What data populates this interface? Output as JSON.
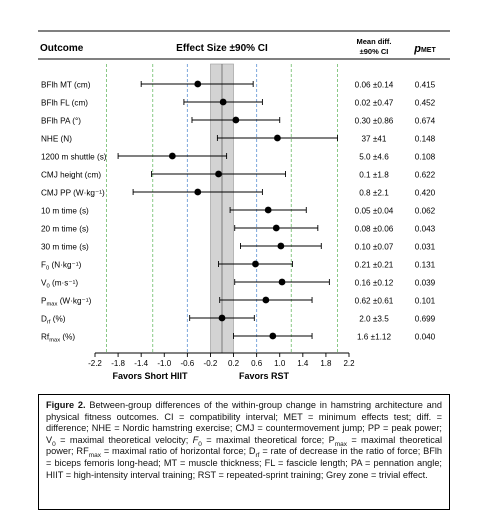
{
  "header": {
    "outcome": "Outcome",
    "effect_size": "Effect Size ±90% CI",
    "mean_diff_line1": "Mean diff.",
    "mean_diff_line2": "±90% CI",
    "pmet_main": "p",
    "pmet_sub": "MET"
  },
  "chart_data": {
    "type": "forest",
    "x_ticks": [
      "-2.2",
      "-1.8",
      "-1.4",
      "-1.0",
      "-0.6",
      "-0.2",
      "0.2",
      "0.6",
      "1.0",
      "1.4",
      "1.8",
      "2.2"
    ],
    "xlim": [
      -2.2,
      2.2
    ],
    "trivial_zone": [
      -0.2,
      0.2
    ],
    "blue_dashed_lines": [
      -0.6,
      0.6
    ],
    "green_dashed_lines": [
      -1.2,
      1.2,
      -2.0,
      2.0
    ],
    "center_line": 0,
    "left_favour_label": "Favors Short HIIT",
    "right_favour_label": "Favors RST",
    "grid": false,
    "rows": [
      {
        "label": "BFlh MT (cm)",
        "label_main": "BFlh MT (cm)",
        "label_sub": "",
        "label_tail": "",
        "es": -0.42,
        "lo": -1.4,
        "hi": 0.54,
        "mean_diff": "0.06 ±0.14",
        "pmet": "0.415"
      },
      {
        "label": "BFlh FL (cm)",
        "label_main": "BFlh FL (cm)",
        "label_sub": "",
        "label_tail": "",
        "es": 0.02,
        "lo": -0.66,
        "hi": 0.7,
        "mean_diff": "0.02 ±0.47",
        "pmet": "0.452"
      },
      {
        "label": "BFlh PA (°)",
        "label_main": "BFlh PA (°)",
        "label_sub": "",
        "label_tail": "",
        "es": 0.24,
        "lo": -0.52,
        "hi": 1.0,
        "mean_diff": "0.30 ±0.86",
        "pmet": "0.674"
      },
      {
        "label": "NHE (N)",
        "label_main": "NHE (N)",
        "label_sub": "",
        "label_tail": "",
        "es": 0.96,
        "lo": -0.08,
        "hi": 2.0,
        "mean_diff": "37 ±41",
        "pmet": "0.148"
      },
      {
        "label": "1200 m shuttle (s)",
        "label_main": "1200 m shuttle (s)",
        "label_sub": "",
        "label_tail": "",
        "es": -0.86,
        "lo": -1.8,
        "hi": 0.08,
        "mean_diff": "5.0 ±4.6",
        "pmet": "0.108"
      },
      {
        "label": "CMJ height (cm)",
        "label_main": "CMJ height (cm)",
        "label_sub": "",
        "label_tail": "",
        "es": -0.06,
        "lo": -1.22,
        "hi": 1.1,
        "mean_diff": "0.1 ±1.8",
        "pmet": "0.622"
      },
      {
        "label": "CMJ PP (W·kg⁻¹)",
        "label_main": "CMJ PP (W·kg⁻¹)",
        "label_sub": "",
        "label_tail": "",
        "es": -0.42,
        "lo": -1.54,
        "hi": 0.7,
        "mean_diff": "0.8 ±2.1",
        "pmet": "0.420"
      },
      {
        "label": "10 m time (s)",
        "label_main": "10 m time (s)",
        "label_sub": "",
        "label_tail": "",
        "es": 0.8,
        "lo": 0.14,
        "hi": 1.46,
        "mean_diff": "0.05 ±0.04",
        "pmet": "0.062"
      },
      {
        "label": "20 m time (s)",
        "label_main": "20 m time (s)",
        "label_sub": "",
        "label_tail": "",
        "es": 0.94,
        "lo": 0.22,
        "hi": 1.66,
        "mean_diff": "0.08 ±0.06",
        "pmet": "0.043"
      },
      {
        "label": "30 m time (s)",
        "label_main": "30 m time (s)",
        "label_sub": "",
        "label_tail": "",
        "es": 1.02,
        "lo": 0.32,
        "hi": 1.72,
        "mean_diff": "0.10 ±0.07",
        "pmet": "0.031"
      },
      {
        "label": "F0 (N·kg⁻¹)",
        "label_main": "F",
        "label_sub": "0",
        "label_tail": " (N·kg⁻¹)",
        "es": 0.58,
        "lo": -0.06,
        "hi": 1.22,
        "mean_diff": "0.21 ±0.21",
        "pmet": "0.131"
      },
      {
        "label": "V0 (m·s⁻¹)",
        "label_main": "V",
        "label_sub": "0",
        "label_tail": " (m·s⁻¹)",
        "es": 1.04,
        "lo": 0.22,
        "hi": 1.86,
        "mean_diff": "0.16 ±0.12",
        "pmet": "0.039"
      },
      {
        "label": "Pmax (W·kg⁻¹)",
        "label_main": "P",
        "label_sub": "max",
        "label_tail": " (W·kg⁻¹)",
        "es": 0.76,
        "lo": -0.04,
        "hi": 1.56,
        "mean_diff": "0.62 ±0.61",
        "pmet": "0.101"
      },
      {
        "label": "Drf (%)",
        "label_main": "D",
        "label_sub": "rf",
        "label_tail": " (%)",
        "es": 0.0,
        "lo": -0.56,
        "hi": 0.56,
        "mean_diff": "2.0 ±3.5",
        "pmet": "0.699"
      },
      {
        "label": "Rfmax (%)",
        "label_main": "Rf",
        "label_sub": "max",
        "label_tail": " (%)",
        "es": 0.88,
        "lo": 0.2,
        "hi": 1.56,
        "mean_diff": "1.6 ±1.12",
        "pmet": "0.040"
      }
    ]
  },
  "caption": {
    "figure_label": "Figure 2.",
    "p1": " Between-group differences of the within-group change in hamstring architecture and physical fitness outcomes. CI = compatibility interval; MET = minimum effects test; diff. = difference; NHE = Nordic hamstring exercise; CMJ = countermovement jump; PP = peak power; V",
    "p1_sub": "0",
    "p2": " = maximal theoretical velocity; ",
    "p2_ital": "F",
    "p2_sub": "0",
    "p3": " = maximal theoretical force; P",
    "p3_sub": "max",
    "p4": " = maximal theoretical power; RF",
    "p4_sub": "max",
    "p5": " = maximal ratio of horizontal force; D",
    "p5_sub": "rf",
    "p6": " = rate of decrease in the ratio of force; BFlh = biceps femoris long-head; MT = muscle thickness; FL = fascicle length; PA = pennation angle; HIIT = high-intensity interval training; RST = repeated-sprint training; Grey zone = trivial effect."
  }
}
